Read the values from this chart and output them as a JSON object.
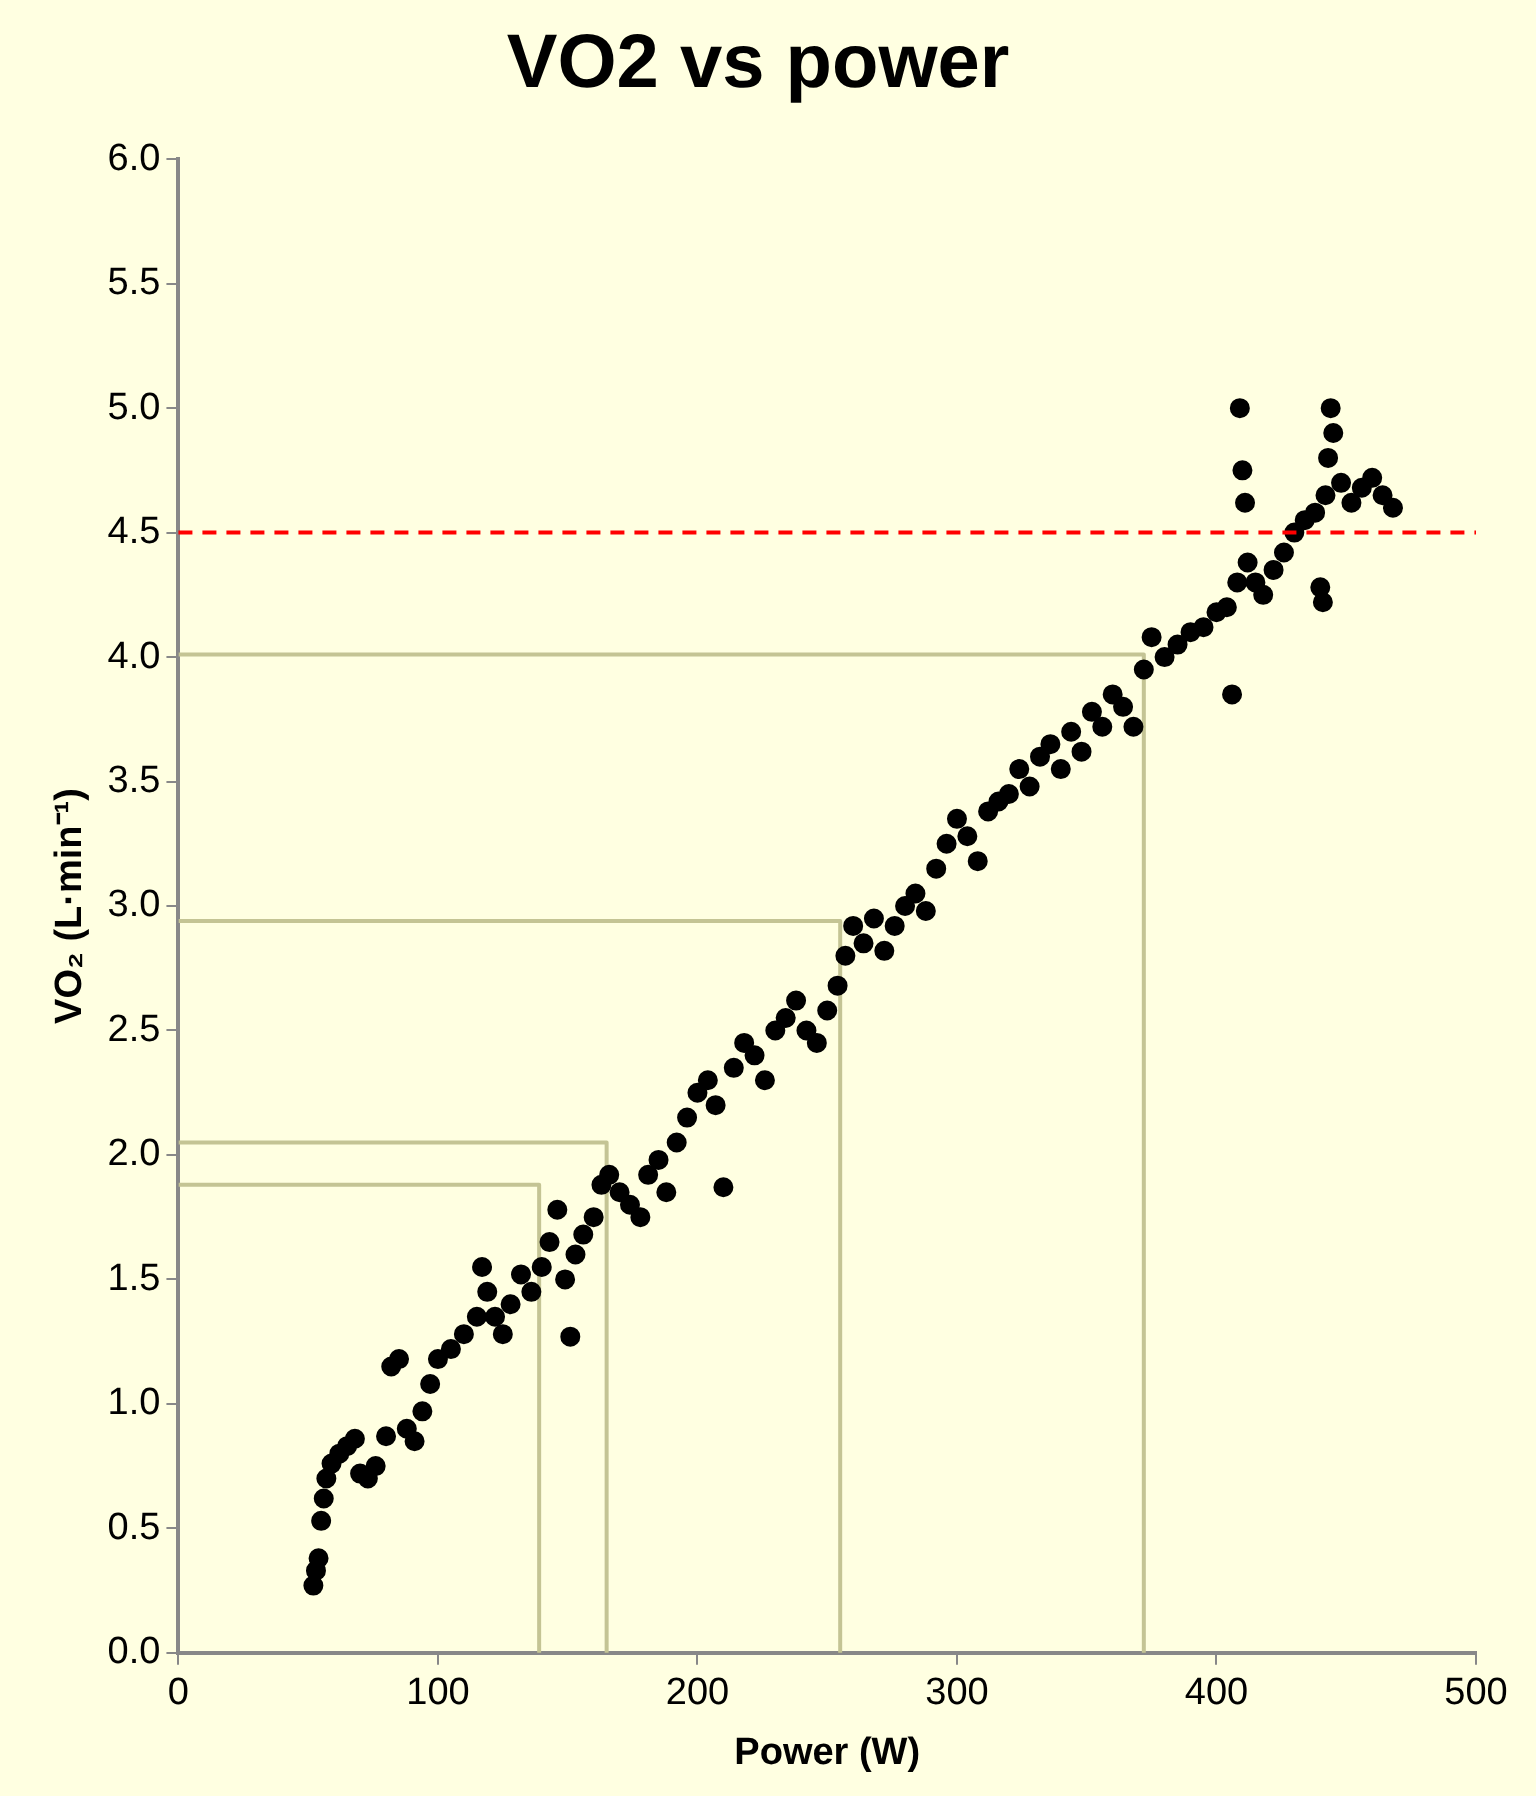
{
  "chart_data": {
    "type": "scatter",
    "title": "VO2 vs power",
    "xlabel": "Power (W)",
    "ylabel": "VO₂ (L·min⁻¹)",
    "xlim": [
      0,
      500
    ],
    "xticks": [
      0,
      100,
      200,
      300,
      400,
      500
    ],
    "ylim": [
      0,
      6
    ],
    "yticks": [
      {
        "value": 0,
        "label": "0.0"
      },
      {
        "value": 0.5,
        "label": "0.5"
      },
      {
        "value": 1,
        "label": "1.0"
      },
      {
        "value": 1.5,
        "label": "1.5"
      },
      {
        "value": 2,
        "label": "2.0"
      },
      {
        "value": 2.5,
        "label": "2.5"
      },
      {
        "value": 3,
        "label": "3.0"
      },
      {
        "value": 3.5,
        "label": "3.5"
      },
      {
        "value": 4,
        "label": "4.0"
      },
      {
        "value": 4.5,
        "label": "4.5"
      },
      {
        "value": 5,
        "label": "5.0"
      },
      {
        "value": 5.5,
        "label": "5.5"
      },
      {
        "value": 6,
        "label": "6.0"
      }
    ],
    "grid": false,
    "legend": false,
    "marker": "circle",
    "ref_lines": [
      {
        "axis": "y",
        "value": 4.5,
        "color": "#ff0000",
        "line_style": "dashed"
      }
    ],
    "series": [
      {
        "color": "#000000",
        "x": [
          52,
          53,
          54,
          55,
          56,
          57,
          59,
          62,
          65,
          68,
          70,
          73,
          76,
          80,
          82,
          85,
          88,
          91,
          94,
          97,
          100,
          105,
          110,
          115,
          117,
          119,
          122,
          125,
          128,
          132,
          136,
          140,
          143,
          146,
          149,
          151,
          153,
          156,
          160,
          163,
          166,
          170,
          174,
          178,
          181,
          185,
          188,
          192,
          196,
          200,
          204,
          207,
          210,
          214,
          218,
          222,
          226,
          230,
          234,
          238,
          242,
          246,
          250,
          254,
          257,
          260,
          264,
          268,
          272,
          276,
          280,
          284,
          288,
          292,
          296,
          300,
          304,
          308,
          312,
          316,
          320,
          324,
          328,
          332,
          336,
          340,
          344,
          348,
          352,
          356,
          360,
          364,
          368,
          372,
          375,
          380,
          385,
          390,
          395,
          400,
          404,
          406,
          408,
          409,
          410,
          411,
          412,
          415,
          418,
          422,
          426,
          430,
          434,
          438,
          440,
          441,
          442,
          443,
          444,
          445,
          448,
          452,
          456,
          460,
          464,
          468
        ],
        "values": [
          0.27,
          0.33,
          0.38,
          0.53,
          0.62,
          0.7,
          0.76,
          0.8,
          0.83,
          0.86,
          0.72,
          0.7,
          0.75,
          0.87,
          1.15,
          1.18,
          0.9,
          0.85,
          0.97,
          1.08,
          1.18,
          1.22,
          1.28,
          1.35,
          1.55,
          1.45,
          1.35,
          1.28,
          1.4,
          1.52,
          1.45,
          1.55,
          1.65,
          1.78,
          1.5,
          1.27,
          1.6,
          1.68,
          1.75,
          1.88,
          1.92,
          1.85,
          1.8,
          1.75,
          1.92,
          1.98,
          1.85,
          2.05,
          2.15,
          2.25,
          2.3,
          2.2,
          1.87,
          2.35,
          2.45,
          2.4,
          2.3,
          2.5,
          2.55,
          2.62,
          2.5,
          2.45,
          2.58,
          2.68,
          2.8,
          2.92,
          2.85,
          2.95,
          2.82,
          2.92,
          3.0,
          3.05,
          2.98,
          3.15,
          3.25,
          3.35,
          3.28,
          3.18,
          3.38,
          3.42,
          3.45,
          3.55,
          3.48,
          3.6,
          3.65,
          3.55,
          3.7,
          3.62,
          3.78,
          3.72,
          3.85,
          3.8,
          3.72,
          3.95,
          4.08,
          4.0,
          4.05,
          4.1,
          4.12,
          4.18,
          4.2,
          3.85,
          4.3,
          5.0,
          4.75,
          4.62,
          4.38,
          4.3,
          4.25,
          4.35,
          4.42,
          4.5,
          4.55,
          4.58,
          4.28,
          4.22,
          4.65,
          4.8,
          5.0,
          4.9,
          4.7,
          4.62,
          4.68,
          4.72,
          4.65,
          4.6
        ]
      },
      {
        "type": "line",
        "color": "#c4c494",
        "marker": "none",
        "x": [
          0,
          139,
          139
        ],
        "values": [
          1.88,
          1.88,
          0
        ]
      },
      {
        "type": "line",
        "color": "#c4c494",
        "marker": "none",
        "x": [
          0,
          165,
          165
        ],
        "values": [
          2.05,
          2.05,
          0
        ]
      },
      {
        "type": "line",
        "color": "#c4c494",
        "marker": "none",
        "x": [
          0,
          255,
          255
        ],
        "values": [
          2.94,
          2.94,
          0
        ]
      },
      {
        "type": "line",
        "color": "#c4c494",
        "marker": "none",
        "x": [
          0,
          372,
          372
        ],
        "values": [
          4.01,
          4.01,
          0
        ]
      }
    ]
  }
}
